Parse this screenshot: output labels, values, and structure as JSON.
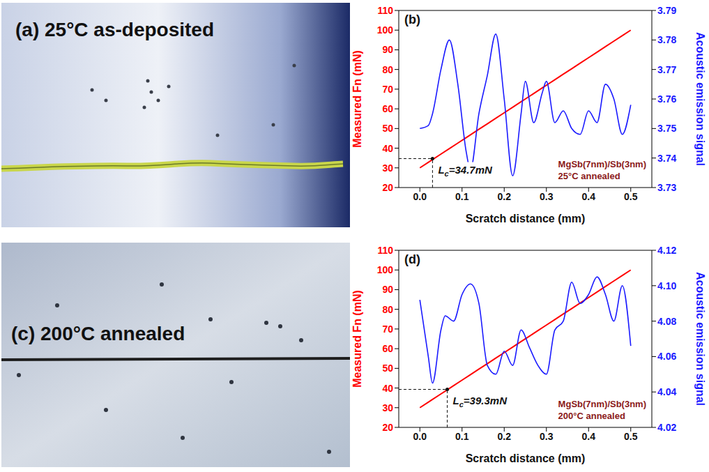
{
  "images": [
    {
      "label": "(a) 25°C as-deposited"
    },
    {
      "label": "(c) 200°C annealed"
    }
  ],
  "chart_data": [
    {
      "type": "line",
      "panel": "(b)",
      "x": [
        0,
        0.02,
        0.03,
        0.05,
        0.07,
        0.09,
        0.11,
        0.12,
        0.14,
        0.16,
        0.18,
        0.2,
        0.22,
        0.24,
        0.25,
        0.27,
        0.29,
        0.3,
        0.32,
        0.34,
        0.36,
        0.38,
        0.4,
        0.42,
        0.44,
        0.46,
        0.48,
        0.5
      ],
      "series": [
        {
          "name": "Measured Fn (mN)",
          "color": "#ff0000",
          "line_style": "solid",
          "values": [
            30,
            32.8,
            34.2,
            37,
            39.8,
            42.6,
            45.4,
            46.8,
            49.6,
            52.4,
            55.2,
            58,
            60.8,
            63.6,
            65,
            67.8,
            70.6,
            72,
            74.8,
            77.6,
            80.4,
            83.2,
            86,
            88.8,
            91.6,
            94.4,
            97.2,
            100
          ]
        },
        {
          "name": "Acoustic emission signal",
          "color": "#1a1aff",
          "line_style": "solid",
          "axis": "y2",
          "values": [
            3.75,
            3.751,
            3.755,
            3.77,
            3.78,
            3.765,
            3.742,
            3.736,
            3.755,
            3.768,
            3.782,
            3.76,
            3.734,
            3.755,
            3.766,
            3.752,
            3.762,
            3.766,
            3.752,
            3.756,
            3.75,
            3.748,
            3.756,
            3.752,
            3.765,
            3.76,
            3.748,
            3.758
          ]
        }
      ],
      "xlabel": "Scratch distance (mm)",
      "ylabel": "Measured Fn (mN)",
      "y2label": "Acoustic emission signal",
      "xlim": [
        -0.05,
        0.55
      ],
      "xticks": [
        {
          "value": 0,
          "label": "0.0"
        },
        0.1,
        0.2,
        0.3,
        0.4,
        0.5
      ],
      "ylim": [
        20,
        110
      ],
      "yticks": [
        20,
        30,
        40,
        50,
        60,
        70,
        80,
        90,
        100,
        110
      ],
      "y2lim": [
        3.73,
        3.79
      ],
      "y2ticks": [
        3.73,
        3.74,
        3.75,
        3.76,
        3.77,
        3.78,
        3.79
      ],
      "critical_load": {
        "text": "Lc=34.7mN",
        "x": 0.03,
        "y": 34.7
      },
      "sample_label": [
        "MgSb(7nm)/Sb(3nm)",
        "25°C annealed"
      ]
    },
    {
      "type": "line",
      "panel": "(d)",
      "x": [
        0,
        0.02,
        0.03,
        0.05,
        0.06,
        0.08,
        0.1,
        0.12,
        0.14,
        0.16,
        0.18,
        0.2,
        0.22,
        0.24,
        0.26,
        0.28,
        0.3,
        0.32,
        0.34,
        0.36,
        0.38,
        0.4,
        0.42,
        0.44,
        0.46,
        0.48,
        0.5
      ],
      "series": [
        {
          "name": "Measured Fn (mN)",
          "color": "#ff0000",
          "line_style": "solid",
          "values": [
            30,
            32.8,
            34.2,
            37,
            38.4,
            41.2,
            44,
            46.8,
            49.6,
            52.4,
            55.2,
            58,
            60.8,
            63.6,
            66.4,
            69.2,
            72,
            74.8,
            77.6,
            80.4,
            83.2,
            86,
            88.8,
            91.6,
            94.4,
            97.2,
            100
          ]
        },
        {
          "name": "Acoustic emission signal",
          "color": "#1a1aff",
          "line_style": "solid",
          "axis": "y2",
          "values": [
            4.092,
            4.06,
            4.045,
            4.075,
            4.083,
            4.08,
            4.095,
            4.101,
            4.09,
            4.055,
            4.05,
            4.063,
            4.055,
            4.075,
            4.065,
            4.055,
            4.05,
            4.075,
            4.08,
            4.102,
            4.09,
            4.095,
            4.105,
            4.095,
            4.08,
            4.1,
            4.066
          ]
        }
      ],
      "xlabel": "Scratch distance (mm)",
      "ylabel": "Measured Fn (mN)",
      "y2label": "Acoustic emission signal",
      "xlim": [
        -0.05,
        0.55
      ],
      "xticks": [
        {
          "value": 0,
          "label": "0.0"
        },
        0.1,
        0.2,
        0.3,
        0.4,
        0.5
      ],
      "ylim": [
        20,
        110
      ],
      "yticks": [
        20,
        30,
        40,
        50,
        60,
        70,
        80,
        90,
        100,
        110
      ],
      "y2lim": [
        4.02,
        4.12
      ],
      "y2ticks": [
        4.02,
        4.04,
        4.06,
        4.08,
        {
          "value": 4.1,
          "label": "4.10"
        },
        4.12
      ],
      "critical_load": {
        "text": "Lc=39.3mN",
        "x": 0.065,
        "y": 39.3
      },
      "sample_label": [
        "MgSb(7nm)/Sb(3nm)",
        "200°C annealed"
      ]
    }
  ]
}
